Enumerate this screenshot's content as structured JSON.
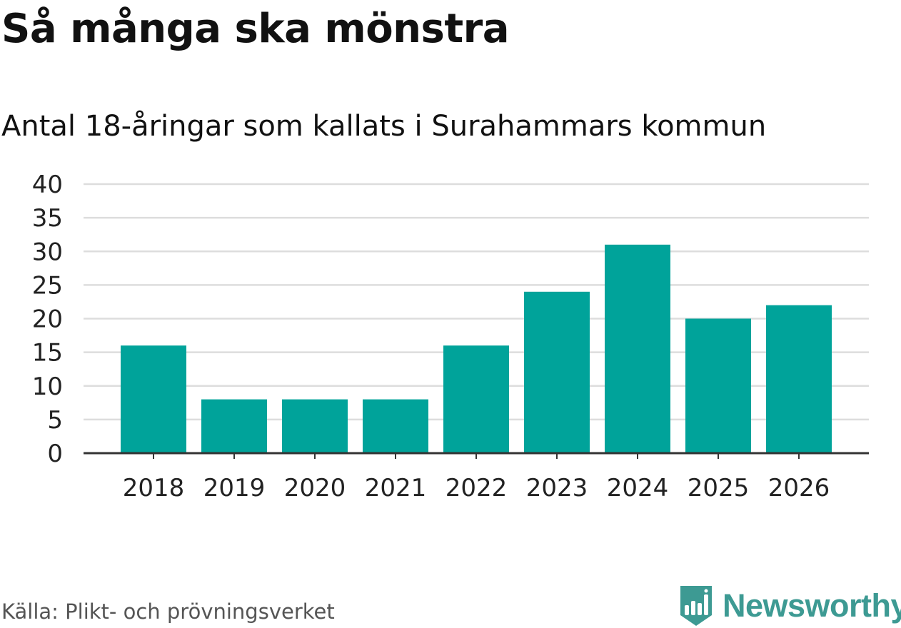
{
  "header": {
    "title": "Så många ska mönstra",
    "subtitle": "Antal 18-åringar som kallats i Surahammars kommun"
  },
  "footer": {
    "source": "Källa: Plikt- och prövningsverket",
    "brand": "Newsworthy",
    "brand_icon": "bar-chart-badge-icon"
  },
  "colors": {
    "bar": "#00a39a",
    "grid": "#dddddd",
    "axis": "#333333",
    "brand": "#3d9a93"
  },
  "chart_data": {
    "type": "bar",
    "title": "Antal 18-åringar som kallats i Surahammars kommun",
    "xlabel": "",
    "ylabel": "",
    "categories": [
      "2018",
      "2019",
      "2020",
      "2021",
      "2022",
      "2023",
      "2024",
      "2025",
      "2026"
    ],
    "values": [
      16,
      8,
      8,
      8,
      16,
      24,
      31,
      20,
      22
    ],
    "ylim": [
      0,
      40
    ],
    "yticks": [
      0,
      5,
      10,
      15,
      20,
      25,
      30,
      35,
      40
    ],
    "grid": true,
    "legend": "none"
  }
}
